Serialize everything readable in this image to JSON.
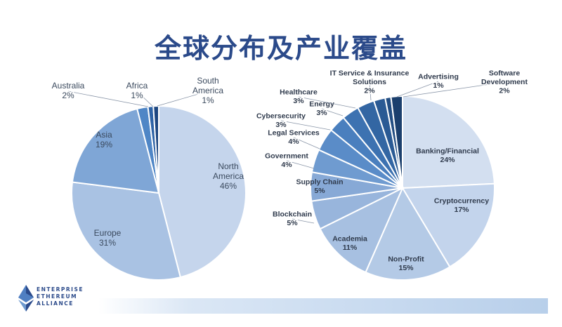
{
  "title": "全球分布及产业覆盖",
  "logo": {
    "line1": "ENTERPRISE",
    "line2": "ETHEREUM",
    "line3": "ALLIANCE"
  },
  "chart_data": [
    {
      "type": "pie",
      "title": "",
      "slices": [
        {
          "label": "North America",
          "value": 46,
          "display": "46%",
          "color": "#c5d5ec",
          "lines": [
            "North",
            "America",
            "46%"
          ]
        },
        {
          "label": "Europe",
          "value": 31,
          "display": "31%",
          "color": "#a9c2e3",
          "lines": [
            "Europe",
            "31%"
          ]
        },
        {
          "label": "Asia",
          "value": 19,
          "display": "19%",
          "color": "#7fa6d6",
          "lines": [
            "Asia",
            "19%"
          ]
        },
        {
          "label": "Australia",
          "value": 2,
          "display": "2%",
          "color": "#4f86c6",
          "lines": [
            "Australia",
            "2%"
          ]
        },
        {
          "label": "Africa",
          "value": 1,
          "display": "1%",
          "color": "#2e63a6",
          "lines": [
            "Africa",
            "1%"
          ]
        },
        {
          "label": "South America",
          "value": 1,
          "display": "1%",
          "color": "#1d4680",
          "lines": [
            "South",
            "America",
            "1%"
          ]
        }
      ]
    },
    {
      "type": "pie",
      "title": "",
      "slices": [
        {
          "label": "Banking/Financial",
          "value": 24,
          "display": "24%",
          "color": "#d3dff0",
          "lines": [
            "Banking/Financial",
            "24%"
          ]
        },
        {
          "label": "Cryptocurrency",
          "value": 17,
          "display": "17%",
          "color": "#c3d4ec",
          "lines": [
            "Cryptocurrency",
            "17%"
          ]
        },
        {
          "label": "Non-Profit",
          "value": 15,
          "display": "15%",
          "color": "#b4cae6",
          "lines": [
            "Non-Profit",
            "15%"
          ]
        },
        {
          "label": "Academia",
          "value": 11,
          "display": "11%",
          "color": "#a7c0e1",
          "lines": [
            "Academia",
            "11%"
          ]
        },
        {
          "label": "Blockchain",
          "value": 5,
          "display": "5%",
          "color": "#98b5dc",
          "lines": [
            "Blockchain",
            "5%"
          ]
        },
        {
          "label": "Supply Chain",
          "value": 5,
          "display": "5%",
          "color": "#87a9d6",
          "lines": [
            "Supply Chain",
            "5%"
          ]
        },
        {
          "label": "Government",
          "value": 4,
          "display": "4%",
          "color": "#6f9bd0",
          "lines": [
            "Government",
            "4%"
          ]
        },
        {
          "label": "Legal Services",
          "value": 4,
          "display": "4%",
          "color": "#5a8cc8",
          "lines": [
            "Legal Services",
            "4%"
          ]
        },
        {
          "label": "Cybersecurity",
          "value": 3,
          "display": "3%",
          "color": "#4a7fbe",
          "lines": [
            "Cybersecurity",
            "3%"
          ]
        },
        {
          "label": "Energy",
          "value": 3,
          "display": "3%",
          "color": "#3d72b1",
          "lines": [
            "Energy",
            "3%"
          ]
        },
        {
          "label": "Healthcare",
          "value": 3,
          "display": "3%",
          "color": "#3366a3",
          "lines": [
            "Healthcare",
            "3%"
          ]
        },
        {
          "label": "IT Service & Insurance Solutions",
          "value": 2,
          "display": "2%",
          "color": "#2a5a94",
          "lines": [
            "IT Service & Insurance",
            "Solutions",
            "2%"
          ]
        },
        {
          "label": "Advertising",
          "value": 1,
          "display": "1%",
          "color": "#224d82",
          "lines": [
            "Advertising",
            "1%"
          ]
        },
        {
          "label": "Software Development",
          "value": 2,
          "display": "2%",
          "color": "#1b3f6d",
          "lines": [
            "Software",
            "Development",
            "2%"
          ]
        }
      ]
    }
  ]
}
